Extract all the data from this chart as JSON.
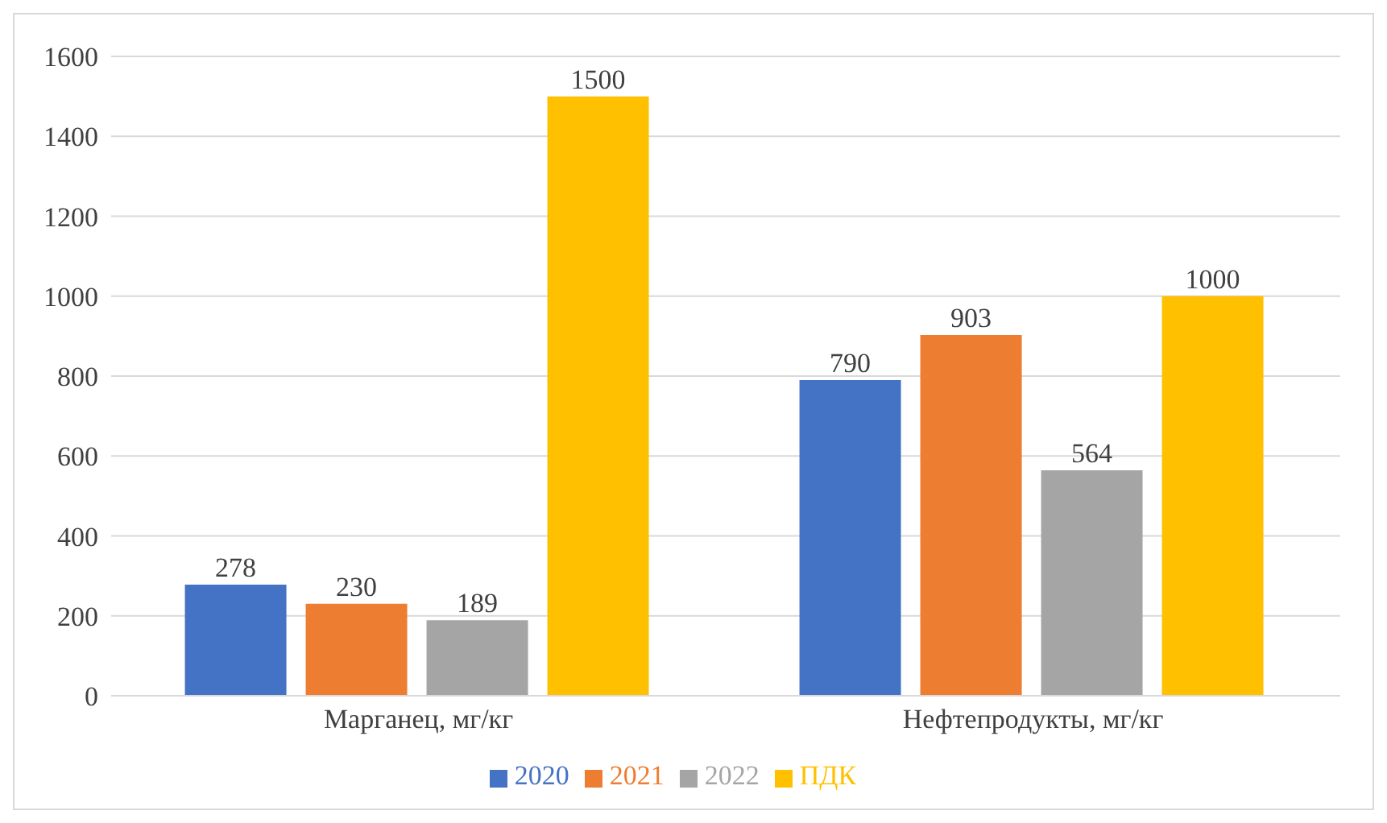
{
  "chart_data": {
    "type": "bar",
    "categories": [
      "Марганец, мг/кг",
      "Нефтепродукты, мг/кг"
    ],
    "series": [
      {
        "name": "2020",
        "color": "#4472c4",
        "values": [
          278,
          790
        ]
      },
      {
        "name": "2021",
        "color": "#ed7d31",
        "values": [
          230,
          903
        ]
      },
      {
        "name": "2022",
        "color": "#a5a5a5",
        "values": [
          189,
          564
        ]
      },
      {
        "name": "ПДК",
        "color": "#ffc000",
        "values": [
          1500,
          1000
        ]
      }
    ],
    "ylim": [
      0,
      1600
    ],
    "yticks": [
      0,
      200,
      400,
      600,
      800,
      1000,
      1200,
      1400,
      1600
    ],
    "grid": "y",
    "legend": "bottom",
    "data_labels": true
  }
}
